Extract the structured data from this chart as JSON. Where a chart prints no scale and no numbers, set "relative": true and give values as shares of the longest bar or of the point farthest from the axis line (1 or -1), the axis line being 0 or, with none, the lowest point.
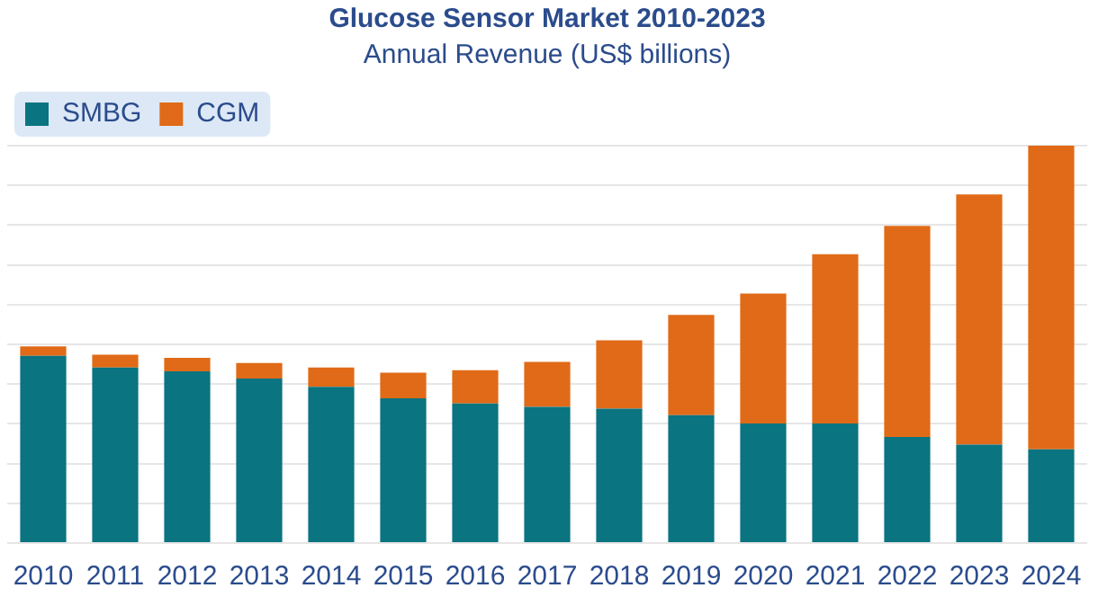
{
  "chart_data": {
    "type": "bar",
    "title": "Glucose Sensor Market 2010-2023",
    "subtitle": "Annual Revenue (US$ billions)",
    "categories": [
      "2010",
      "2011",
      "2012",
      "2013",
      "2014",
      "2015",
      "2016",
      "2017",
      "2018",
      "2019",
      "2020",
      "2021",
      "2022",
      "2023",
      "2024"
    ],
    "stacked": true,
    "relative": true,
    "grid": "y",
    "legend": "top left",
    "series": [
      {
        "name": "SMBG",
        "color": "#0a7480",
        "values": [
          0.471,
          0.442,
          0.432,
          0.414,
          0.393,
          0.364,
          0.351,
          0.343,
          0.338,
          0.322,
          0.301,
          0.301,
          0.267,
          0.248,
          0.236
        ]
      },
      {
        "name": "CGM",
        "color": "#e06a17",
        "values": [
          0.024,
          0.032,
          0.034,
          0.039,
          0.049,
          0.065,
          0.084,
          0.113,
          0.172,
          0.252,
          0.327,
          0.426,
          0.531,
          0.629,
          0.764
        ]
      }
    ]
  }
}
